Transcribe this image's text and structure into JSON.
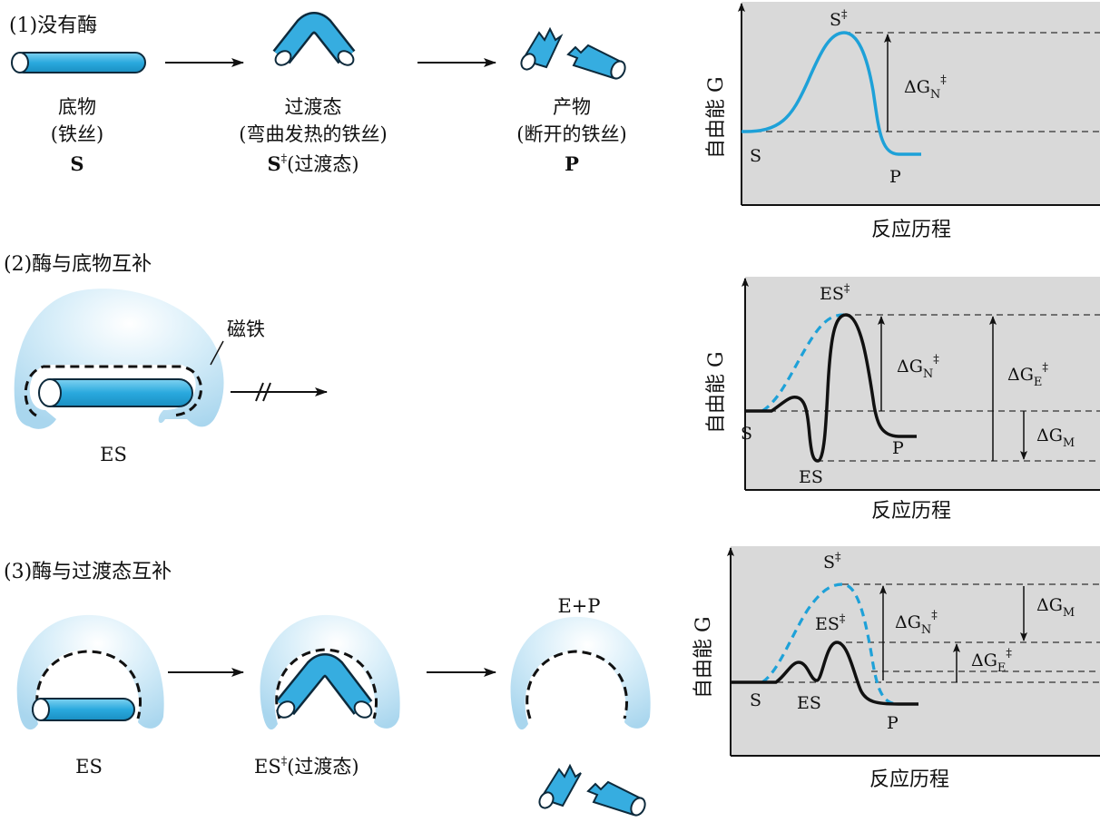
{
  "section1": {
    "heading": "(1)没有酶",
    "stage1": {
      "line1": "底物",
      "line2": "(铁丝)",
      "line3": "S"
    },
    "stage2": {
      "line1": "过渡态",
      "line2": "(弯曲发热的铁丝)",
      "line3_sym": "S",
      "line3_dagger": "‡",
      "line3_rest": "(过渡态)"
    },
    "stage3": {
      "line1": "产物",
      "line2": "(断开的铁丝)",
      "line3": "P"
    }
  },
  "section2": {
    "heading": "(2)酶与底物互补",
    "magnet_label": "磁铁",
    "complex_label": "ES"
  },
  "section3": {
    "heading": "(3)酶与过渡态互补",
    "stage1_label": "ES",
    "stage2_sym": "ES",
    "stage2_dagger": "‡",
    "stage2_rest": "(过渡态)",
    "stage3_label": "E+P"
  },
  "chart_data": [
    {
      "type": "line",
      "title": "",
      "ylabel": "自由能 G",
      "xlabel": "反应历程",
      "annotations": {
        "start": "S",
        "top": "S",
        "top_dagger": "‡",
        "end": "P",
        "gap": "ΔG",
        "gap_sub": "N",
        "gap_sup": "‡"
      }
    },
    {
      "type": "line",
      "title": "",
      "ylabel": "自由能 G",
      "xlabel": "反应历程",
      "annotations": {
        "start": "S",
        "top": "ES",
        "top_dagger": "‡",
        "well": "ES",
        "end": "P",
        "gapN": "ΔG",
        "gapN_sub": "N",
        "gapN_sup": "‡",
        "gapE": "ΔG",
        "gapE_sub": "E",
        "gapE_sup": "‡",
        "gapM": "ΔG",
        "gapM_sub": "M"
      }
    },
    {
      "type": "line",
      "title": "",
      "ylabel": "自由能 G",
      "xlabel": "反应历程",
      "annotations": {
        "start": "S",
        "top": "S",
        "top_dagger": "‡",
        "mid": "ES",
        "mid_dagger": "‡",
        "well": "ES",
        "end": "P",
        "gapN": "ΔG",
        "gapN_sub": "N",
        "gapN_sup": "‡",
        "gapM": "ΔG",
        "gapM_sub": "M",
        "gapE": "ΔG",
        "gapE_sub": "E",
        "gapE_sup": "‡"
      }
    }
  ],
  "colors": {
    "wire": "#3fb4e3",
    "wire_edge": "#0d2a3c",
    "enzyme_light": "#e6f4fb",
    "enzyme_mid": "#b9dff2",
    "panel_bg": "#d9d9d9",
    "curve_blue": "#1ea1d8",
    "curve_black": "#111111"
  },
  "icons": [
    "straight-wire-icon",
    "bent-wire-icon",
    "broken-wire-icon",
    "enzyme-icon",
    "magnet-dashed-outline"
  ]
}
